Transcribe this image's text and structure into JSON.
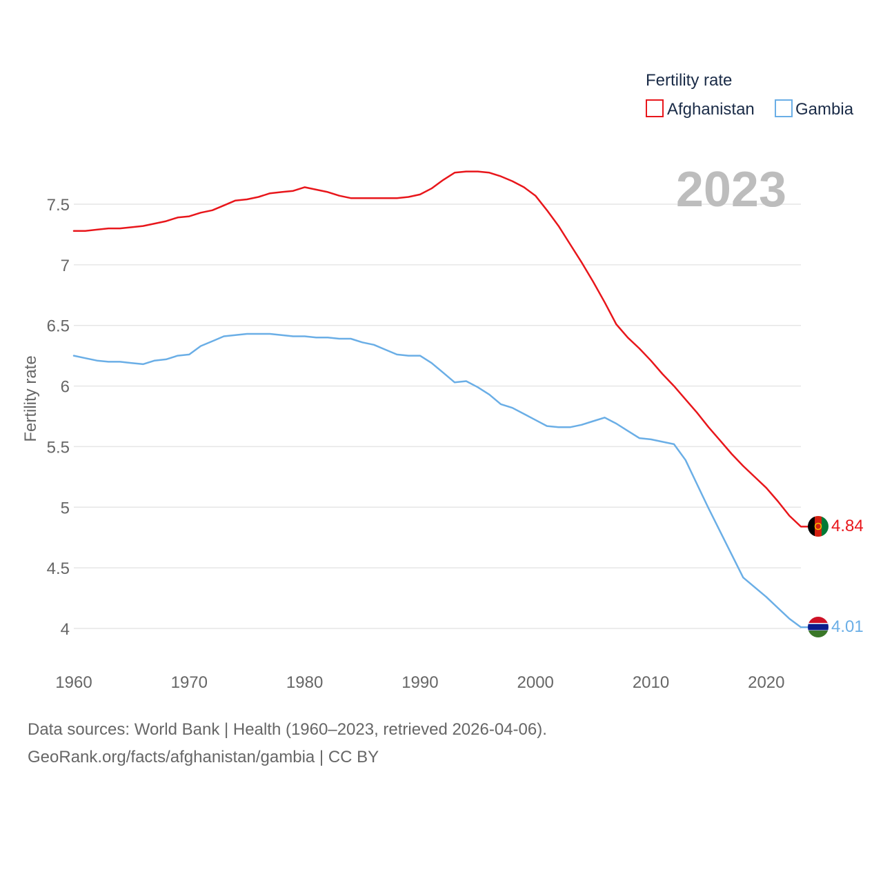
{
  "chart_data": {
    "type": "line",
    "title": "Fertility rate",
    "current_year": "2023",
    "ylabel": "Fertility rate",
    "xlabel": "",
    "xlim": [
      1960,
      2023
    ],
    "ylim": [
      3.85,
      7.85
    ],
    "x_ticks": [
      "1960",
      "1970",
      "1980",
      "1990",
      "2000",
      "2010",
      "2020"
    ],
    "y_ticks": [
      "4",
      "4.5",
      "5",
      "5.5",
      "6",
      "6.5",
      "7",
      "7.5"
    ],
    "legend_title": "Fertility rate",
    "x": [
      1960,
      1961,
      1962,
      1963,
      1964,
      1965,
      1966,
      1967,
      1968,
      1969,
      1970,
      1971,
      1972,
      1973,
      1974,
      1975,
      1976,
      1977,
      1978,
      1979,
      1980,
      1981,
      1982,
      1983,
      1984,
      1985,
      1986,
      1987,
      1988,
      1989,
      1990,
      1991,
      1992,
      1993,
      1994,
      1995,
      1996,
      1997,
      1998,
      1999,
      2000,
      2001,
      2002,
      2003,
      2004,
      2005,
      2006,
      2007,
      2008,
      2009,
      2010,
      2011,
      2012,
      2013,
      2014,
      2015,
      2016,
      2017,
      2018,
      2019,
      2020,
      2021,
      2022,
      2023
    ],
    "series": [
      {
        "name": "Afghanistan",
        "color": "#e8161b",
        "end_label": "4.84",
        "flag": "afghanistan-flag",
        "values": [
          7.28,
          7.28,
          7.29,
          7.3,
          7.3,
          7.31,
          7.32,
          7.34,
          7.36,
          7.39,
          7.4,
          7.43,
          7.45,
          7.49,
          7.53,
          7.54,
          7.56,
          7.59,
          7.6,
          7.61,
          7.64,
          7.62,
          7.6,
          7.57,
          7.55,
          7.55,
          7.55,
          7.55,
          7.55,
          7.56,
          7.58,
          7.63,
          7.7,
          7.76,
          7.77,
          7.77,
          7.76,
          7.73,
          7.69,
          7.64,
          7.57,
          7.45,
          7.32,
          7.17,
          7.02,
          6.86,
          6.69,
          6.51,
          6.4,
          6.31,
          6.21,
          6.1,
          6.0,
          5.89,
          5.78,
          5.66,
          5.55,
          5.44,
          5.34,
          5.25,
          5.16,
          5.05,
          4.93,
          4.84
        ]
      },
      {
        "name": "Gambia",
        "color": "#6aaee6",
        "end_label": "4.01",
        "flag": "gambia-flag",
        "values": [
          6.25,
          6.23,
          6.21,
          6.2,
          6.2,
          6.19,
          6.18,
          6.21,
          6.22,
          6.25,
          6.26,
          6.33,
          6.37,
          6.41,
          6.42,
          6.43,
          6.43,
          6.43,
          6.42,
          6.41,
          6.41,
          6.4,
          6.4,
          6.39,
          6.39,
          6.36,
          6.34,
          6.3,
          6.26,
          6.25,
          6.25,
          6.19,
          6.11,
          6.03,
          6.04,
          5.99,
          5.93,
          5.85,
          5.82,
          5.77,
          5.72,
          5.67,
          5.66,
          5.66,
          5.68,
          5.71,
          5.74,
          5.69,
          5.63,
          5.57,
          5.56,
          5.54,
          5.52,
          5.39,
          5.19,
          4.99,
          4.8,
          4.61,
          4.42,
          4.34,
          4.26,
          4.17,
          4.08,
          4.01
        ]
      }
    ]
  },
  "footer": {
    "source": "Data sources: World Bank | Health (1960–2023, retrieved 2026-04-06).",
    "credit": "GeoRank.org/facts/afghanistan/gambia | CC BY"
  }
}
